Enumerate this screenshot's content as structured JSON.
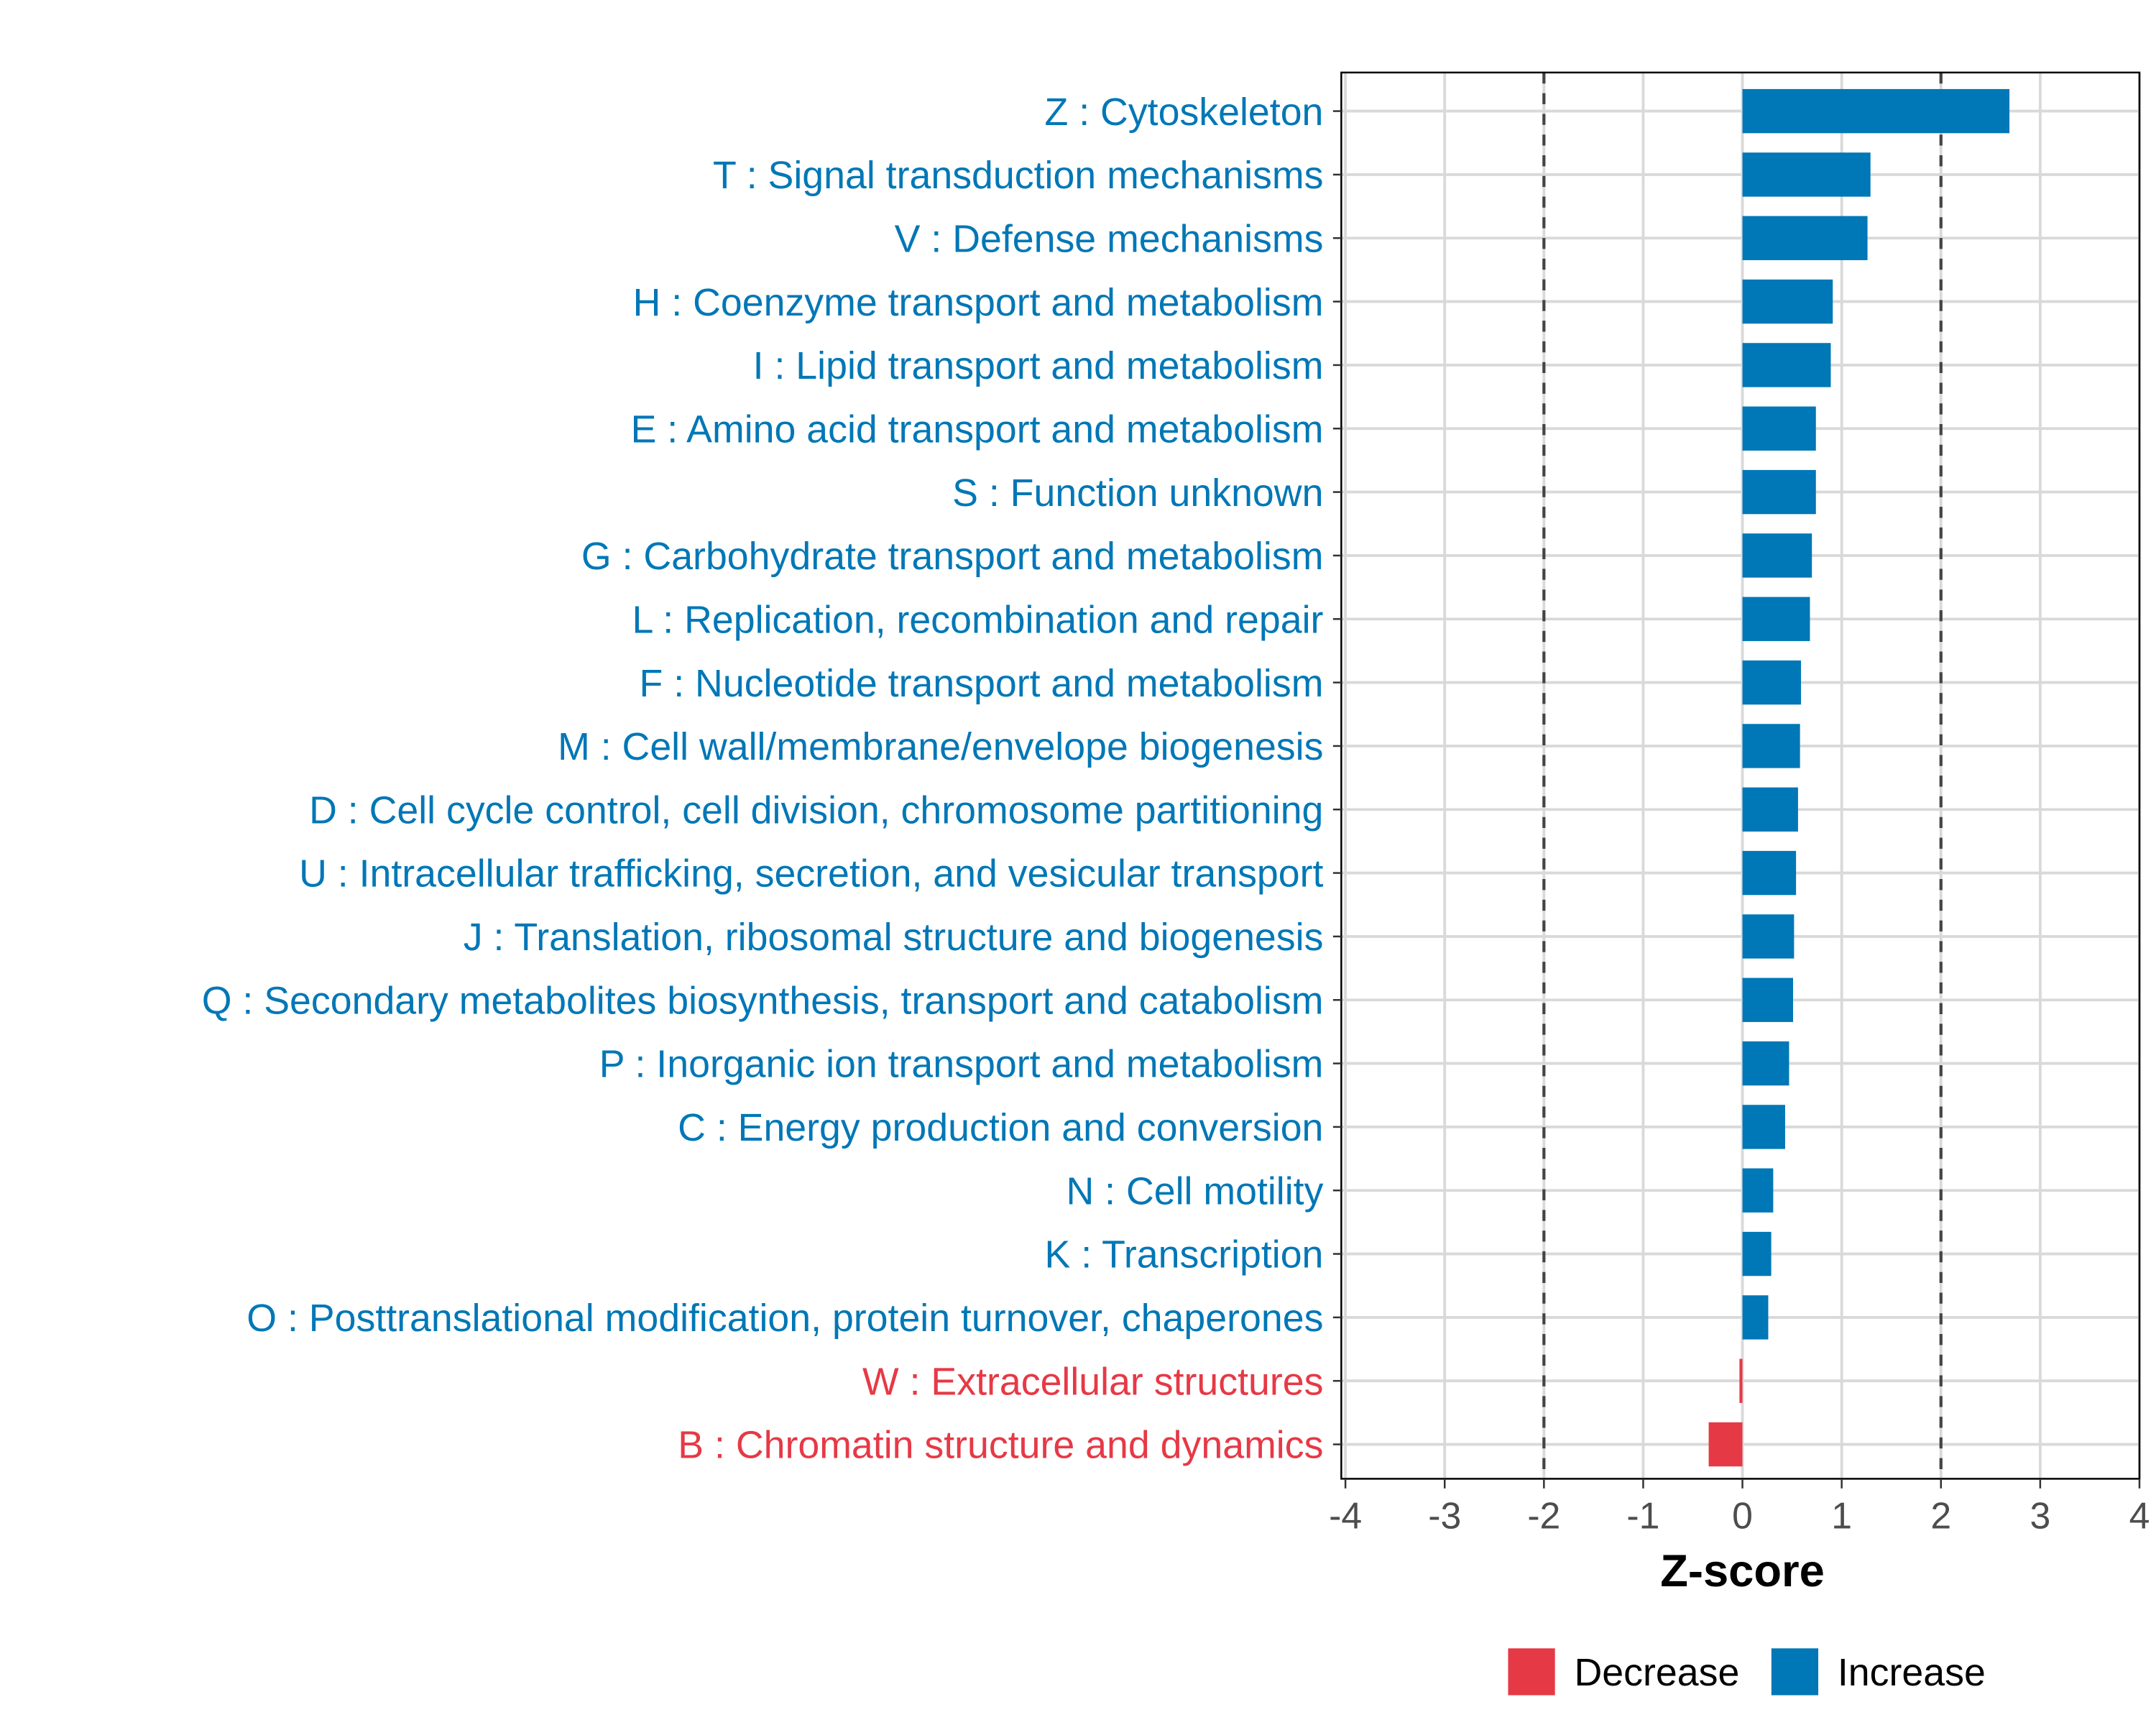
{
  "chart_data": {
    "type": "bar",
    "orientation": "horizontal",
    "xlabel": "Z-score",
    "ylabel": "",
    "xlim": [
      -4,
      4
    ],
    "xticks": [
      "-4",
      "-3",
      "-2",
      "-1",
      "0",
      "1",
      "2",
      "3",
      "4"
    ],
    "xtick_values": [
      -4,
      -3,
      -2,
      -1,
      0,
      1,
      2,
      3,
      4
    ],
    "reference_lines": [
      -2,
      2
    ],
    "grid": true,
    "legend_position": "bottom",
    "legend": [
      {
        "name": "Decrease",
        "color": "#e63946"
      },
      {
        "name": "Increase",
        "color": "#0077b6"
      }
    ],
    "categories": [
      "Z : Cytoskeleton",
      "T : Signal transduction mechanisms",
      "V : Defense mechanisms",
      "H : Coenzyme transport and metabolism",
      "I : Lipid transport and metabolism",
      "E : Amino acid transport and metabolism",
      "S : Function unknown",
      "G : Carbohydrate transport and metabolism",
      "L : Replication, recombination and repair",
      "F : Nucleotide transport and metabolism",
      "M : Cell wall/membrane/envelope biogenesis",
      "D : Cell cycle control, cell division, chromosome partitioning",
      "U : Intracellular trafficking, secretion, and vesicular transport",
      "J : Translation, ribosomal structure and biogenesis",
      "Q : Secondary metabolites biosynthesis, transport and catabolism",
      "P : Inorganic ion transport and metabolism",
      "C : Energy production and conversion",
      "N : Cell motility",
      "K : Transcription",
      "O : Posttranslational modification, protein turnover, chaperones",
      "W : Extracellular structures",
      "B : Chromatin structure and dynamics"
    ],
    "values": [
      2.69,
      1.29,
      1.26,
      0.91,
      0.89,
      0.74,
      0.74,
      0.7,
      0.68,
      0.59,
      0.58,
      0.56,
      0.54,
      0.52,
      0.51,
      0.47,
      0.43,
      0.31,
      0.29,
      0.26,
      -0.03,
      -0.34
    ],
    "groups": [
      "Increase",
      "Increase",
      "Increase",
      "Increase",
      "Increase",
      "Increase",
      "Increase",
      "Increase",
      "Increase",
      "Increase",
      "Increase",
      "Increase",
      "Increase",
      "Increase",
      "Increase",
      "Increase",
      "Increase",
      "Increase",
      "Increase",
      "Increase",
      "Decrease",
      "Decrease"
    ]
  }
}
